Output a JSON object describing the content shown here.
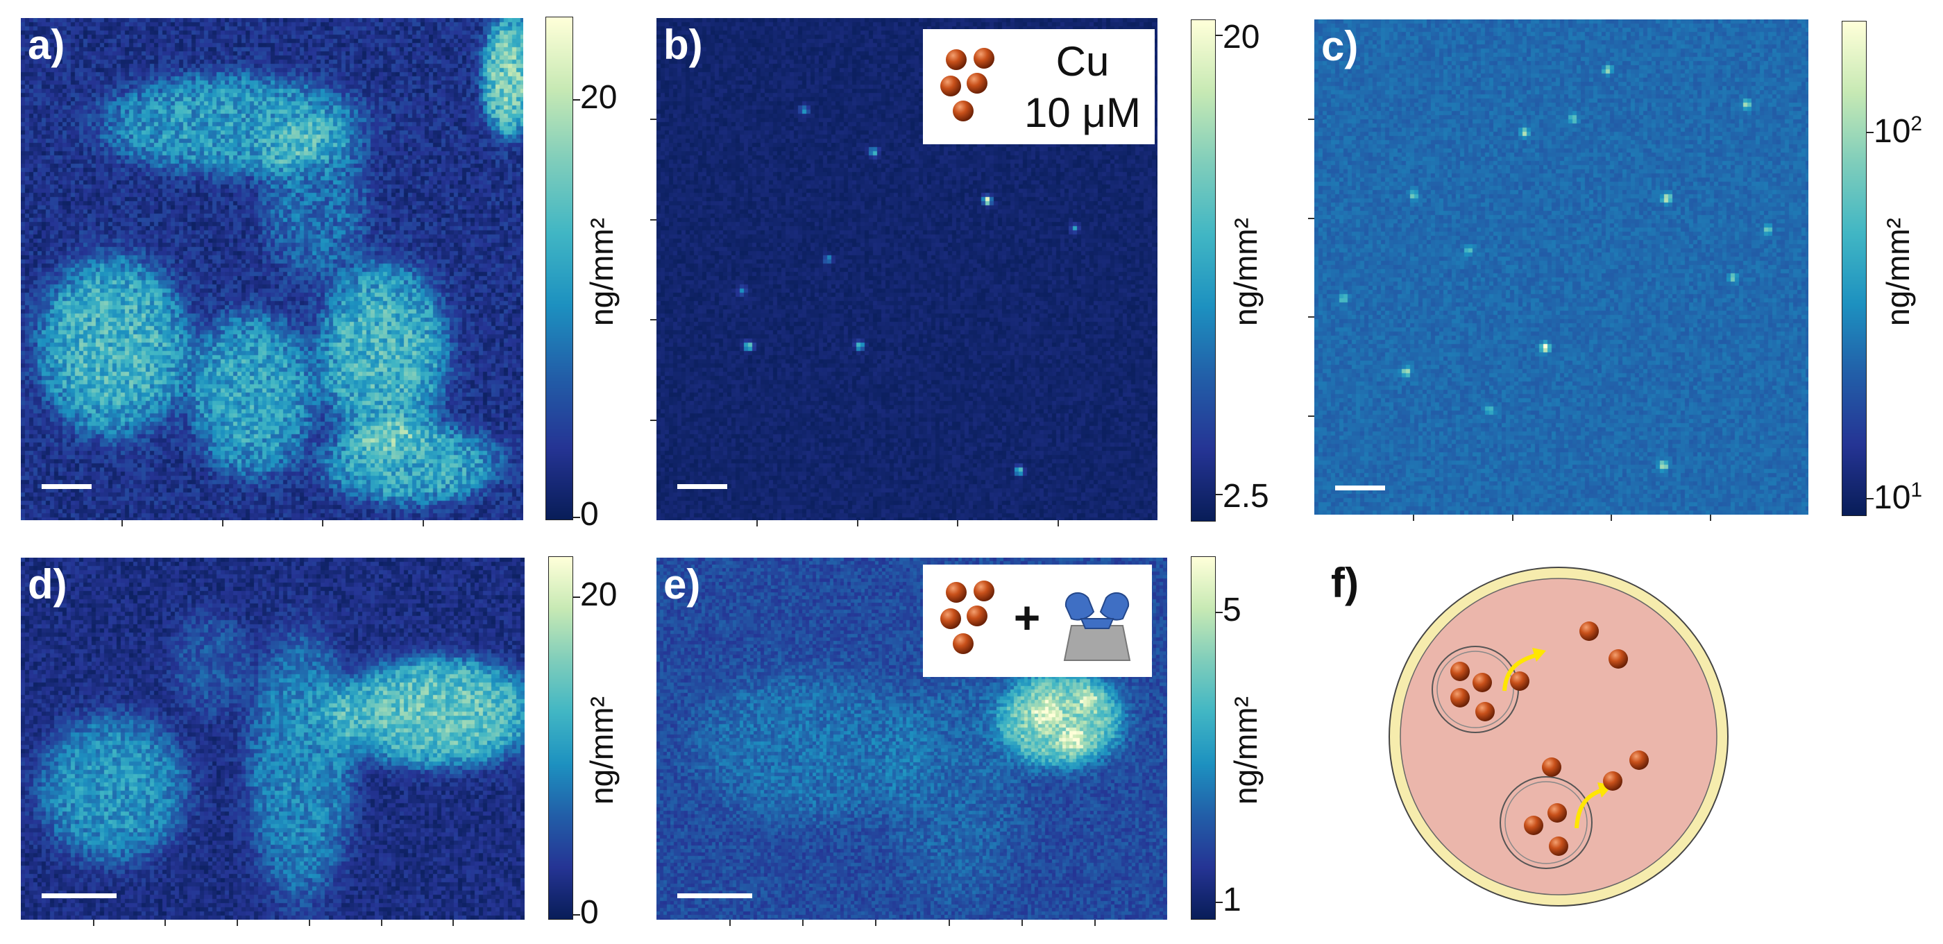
{
  "panels": [
    {
      "label": "a)",
      "type": "heatmap",
      "cbar_ticks": [
        "0",
        "20"
      ],
      "cbar_unit": "ng/mm²"
    },
    {
      "label": "b)",
      "type": "heatmap",
      "cbar_ticks": [
        "2.5",
        "20"
      ],
      "cbar_unit": "ng/mm²",
      "legend": {
        "element": "Cu",
        "concentration": "10 μM"
      }
    },
    {
      "label": "c)",
      "type": "heatmap",
      "cbar_ticks": [
        "10",
        "10"
      ],
      "cbar_exponents": [
        "1",
        "2"
      ],
      "cbar_unit": "ng/mm²",
      "cbar_scale": "log"
    },
    {
      "label": "d)",
      "type": "heatmap",
      "cbar_ticks": [
        "0",
        "20"
      ],
      "cbar_unit": "ng/mm²"
    },
    {
      "label": "e)",
      "type": "heatmap",
      "cbar_ticks": [
        "1",
        "5"
      ],
      "cbar_unit": "ng/mm²",
      "legend": {
        "plus": "+"
      }
    },
    {
      "label": "f)",
      "type": "schematic"
    }
  ],
  "colors": {
    "colormap": [
      "#081d58",
      "#253494",
      "#225ea8",
      "#1d91c0",
      "#41b6c4",
      "#7fcdbb",
      "#c7e9b4",
      "#ffffd9"
    ],
    "nanoparticle": "#c8501a",
    "arrow": "#ffe600",
    "cell_fill": "#ebb6ab",
    "cell_border": "#f6ecad"
  },
  "chart_data": [
    {
      "type": "heatmap",
      "panel": "a",
      "ylim": [
        0,
        25
      ],
      "colorbar_ticks": [
        0,
        20
      ],
      "unit": "ng/mm²"
    },
    {
      "type": "heatmap",
      "panel": "b",
      "ylim": [
        2.5,
        20
      ],
      "colorbar_ticks": [
        2.5,
        20
      ],
      "unit": "ng/mm²"
    },
    {
      "type": "heatmap",
      "panel": "c",
      "scale": "log",
      "ylim": [
        10,
        200
      ],
      "colorbar_ticks": [
        10,
        100
      ],
      "unit": "ng/mm²"
    },
    {
      "type": "heatmap",
      "panel": "d",
      "ylim": [
        0,
        23
      ],
      "colorbar_ticks": [
        0,
        20
      ],
      "unit": "ng/mm²"
    },
    {
      "type": "heatmap",
      "panel": "e",
      "ylim": [
        0.9,
        8
      ],
      "colorbar_ticks": [
        1,
        5
      ],
      "unit": "ng/mm²"
    }
  ]
}
